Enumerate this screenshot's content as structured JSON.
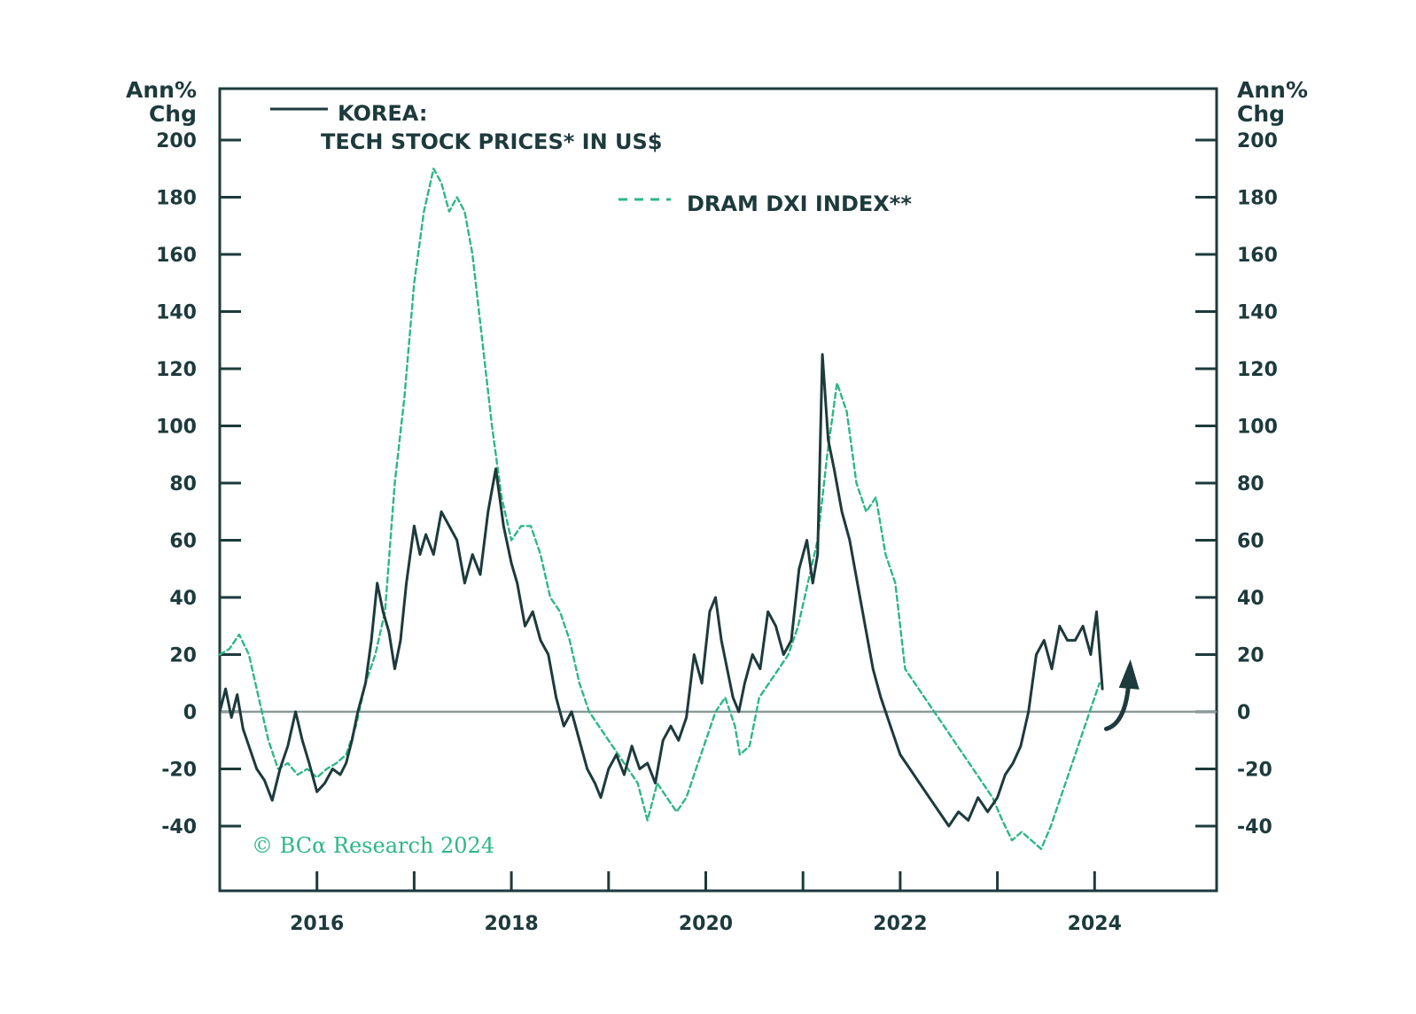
{
  "chart_data": {
    "type": "line",
    "y_unit_left": [
      "Ann%",
      "Chg"
    ],
    "y_unit_right": [
      "Ann%",
      "Chg"
    ],
    "ylim": [
      -60,
      220
    ],
    "y_ticks": [
      -40,
      -20,
      0,
      20,
      40,
      60,
      80,
      100,
      120,
      140,
      160,
      180,
      200
    ],
    "xlim": [
      2015.0,
      2025.0
    ],
    "x_ticks": [
      2016,
      2018,
      2020,
      2022,
      2024
    ],
    "x_minor_ticks": [
      2016,
      2017,
      2018,
      2019,
      2020,
      2021,
      2022,
      2023,
      2024
    ],
    "zero_line": true,
    "grid": false,
    "series": [
      {
        "name": "KOREA: TECH STOCK PRICES* IN US$",
        "legend_lines": [
          "KOREA:",
          "TECH STOCK PRICES* IN US$"
        ],
        "style": "solid",
        "color": "#1d3a3c",
        "x": [
          2015.0,
          2015.06,
          2015.12,
          2015.18,
          2015.24,
          2015.3,
          2015.38,
          2015.46,
          2015.54,
          2015.62,
          2015.7,
          2015.78,
          2015.85,
          2015.92,
          2016.0,
          2016.08,
          2016.16,
          2016.24,
          2016.3,
          2016.36,
          2016.42,
          2016.5,
          2016.56,
          2016.62,
          2016.68,
          2016.74,
          2016.8,
          2016.86,
          2016.92,
          2017.0,
          2017.06,
          2017.12,
          2017.2,
          2017.28,
          2017.36,
          2017.44,
          2017.52,
          2017.6,
          2017.68,
          2017.76,
          2017.84,
          2017.92,
          2018.0,
          2018.06,
          2018.14,
          2018.22,
          2018.3,
          2018.38,
          2018.46,
          2018.54,
          2018.62,
          2018.7,
          2018.78,
          2018.86,
          2018.92,
          2019.0,
          2019.08,
          2019.16,
          2019.24,
          2019.32,
          2019.4,
          2019.48,
          2019.56,
          2019.64,
          2019.72,
          2019.8,
          2019.88,
          2019.96,
          2020.04,
          2020.1,
          2020.16,
          2020.22,
          2020.28,
          2020.34,
          2020.4,
          2020.48,
          2020.56,
          2020.64,
          2020.72,
          2020.8,
          2020.88,
          2020.96,
          2021.04,
          2021.1,
          2021.15,
          2021.2,
          2021.26,
          2021.32,
          2021.4,
          2021.48,
          2021.56,
          2021.64,
          2021.72,
          2021.8,
          2021.9,
          2022.0,
          2022.1,
          2022.2,
          2022.3,
          2022.4,
          2022.5,
          2022.6,
          2022.7,
          2022.8,
          2022.9,
          2023.0,
          2023.08,
          2023.16,
          2023.24,
          2023.32,
          2023.4,
          2023.48,
          2023.56,
          2023.64,
          2023.72,
          2023.8,
          2023.88,
          2023.96,
          2024.02,
          2024.08
        ],
        "y": [
          0,
          8,
          -2,
          6,
          -6,
          -12,
          -20,
          -24,
          -31,
          -20,
          -12,
          0,
          -10,
          -18,
          -28,
          -25,
          -20,
          -22,
          -18,
          -10,
          0,
          10,
          25,
          45,
          35,
          28,
          15,
          25,
          45,
          65,
          55,
          62,
          55,
          70,
          65,
          60,
          45,
          55,
          48,
          70,
          85,
          65,
          52,
          45,
          30,
          35,
          25,
          20,
          5,
          -5,
          0,
          -10,
          -20,
          -25,
          -30,
          -20,
          -15,
          -22,
          -12,
          -20,
          -18,
          -25,
          -10,
          -5,
          -10,
          -2,
          20,
          10,
          35,
          40,
          25,
          15,
          5,
          0,
          10,
          20,
          15,
          35,
          30,
          20,
          25,
          50,
          60,
          45,
          55,
          125,
          95,
          85,
          70,
          60,
          45,
          30,
          15,
          5,
          -5,
          -15,
          -20,
          -25,
          -30,
          -35,
          -40,
          -35,
          -38,
          -30,
          -35,
          -30,
          -22,
          -18,
          -12,
          0,
          20,
          25,
          15,
          30,
          25,
          25,
          30,
          20,
          35,
          8
        ],
        "arrow_annotation": {
          "from": [
            2024.12,
            -6
          ],
          "to": [
            2024.35,
            14
          ]
        }
      },
      {
        "name": "DRAM DXI INDEX**",
        "legend_lines": [
          "DRAM DXI INDEX**"
        ],
        "style": "dashed",
        "color": "#2db784",
        "x": [
          2015.0,
          2015.1,
          2015.2,
          2015.3,
          2015.4,
          2015.5,
          2015.6,
          2015.7,
          2015.8,
          2015.9,
          2016.0,
          2016.1,
          2016.2,
          2016.3,
          2016.4,
          2016.5,
          2016.6,
          2016.7,
          2016.8,
          2016.9,
          2017.0,
          2017.1,
          2017.2,
          2017.28,
          2017.36,
          2017.44,
          2017.52,
          2017.6,
          2017.7,
          2017.8,
          2017.9,
          2018.0,
          2018.1,
          2018.2,
          2018.3,
          2018.4,
          2018.5,
          2018.6,
          2018.7,
          2018.8,
          2018.9,
          2019.0,
          2019.1,
          2019.2,
          2019.3,
          2019.4,
          2019.5,
          2019.6,
          2019.7,
          2019.8,
          2019.9,
          2020.0,
          2020.1,
          2020.2,
          2020.3,
          2020.35,
          2020.45,
          2020.55,
          2020.65,
          2020.75,
          2020.85,
          2020.95,
          2021.05,
          2021.15,
          2021.25,
          2021.35,
          2021.45,
          2021.55,
          2021.65,
          2021.75,
          2021.85,
          2021.95,
          2022.05,
          2022.15,
          2022.25,
          2022.35,
          2022.45,
          2022.55,
          2022.65,
          2022.75,
          2022.85,
          2022.95,
          2023.05,
          2023.15,
          2023.25,
          2023.35,
          2023.45,
          2023.55,
          2023.65,
          2023.75,
          2023.85,
          2023.95,
          2024.05
        ],
        "y": [
          20,
          22,
          27,
          20,
          5,
          -10,
          -20,
          -18,
          -22,
          -20,
          -23,
          -20,
          -18,
          -15,
          -5,
          10,
          20,
          35,
          80,
          110,
          150,
          175,
          190,
          185,
          175,
          180,
          175,
          160,
          130,
          100,
          75,
          60,
          65,
          65,
          55,
          40,
          35,
          25,
          10,
          0,
          -5,
          -10,
          -15,
          -20,
          -25,
          -38,
          -25,
          -30,
          -35,
          -30,
          -20,
          -10,
          0,
          5,
          -5,
          -15,
          -12,
          5,
          10,
          15,
          20,
          30,
          45,
          60,
          90,
          115,
          105,
          80,
          70,
          75,
          55,
          45,
          15,
          10,
          5,
          0,
          -5,
          -10,
          -15,
          -20,
          -25,
          -30,
          -38,
          -45,
          -42,
          -45,
          -48,
          -40,
          -30,
          -20,
          -10,
          0,
          10
        ]
      }
    ],
    "copyright": "© BCα Research 2024"
  }
}
